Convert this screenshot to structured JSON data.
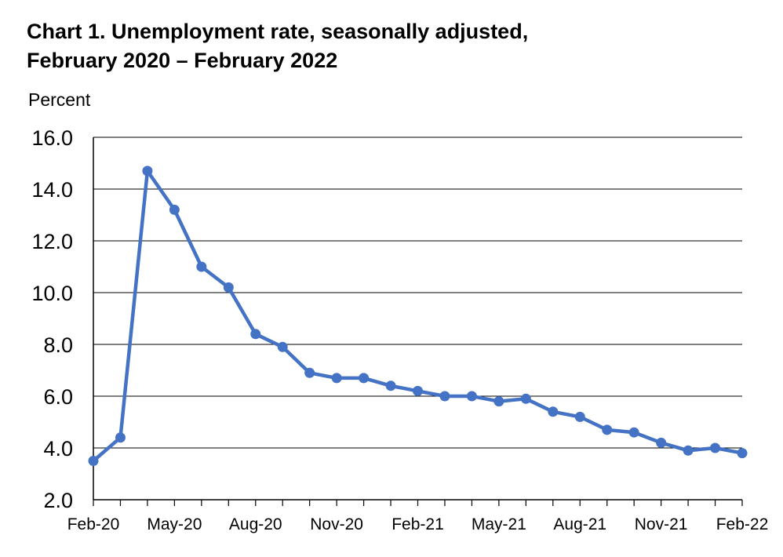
{
  "title": {
    "line1": "Chart 1. Unemployment rate, seasonally adjusted,",
    "line2": "February 2020 – February 2022"
  },
  "colors": {
    "series": "#4472C4",
    "grid": "#000000",
    "axis": "#000000"
  },
  "chart_data": {
    "type": "line",
    "title": "Chart 1. Unemployment rate, seasonally adjusted, February 2020 – February 2022",
    "xlabel": "",
    "ylabel": "Percent",
    "ylim": [
      2.0,
      16.0
    ],
    "yticks": [
      "2.0",
      "4.0",
      "6.0",
      "8.0",
      "10.0",
      "12.0",
      "14.0",
      "16.0"
    ],
    "x": [
      "Feb-20",
      "Mar-20",
      "Apr-20",
      "May-20",
      "Jun-20",
      "Jul-20",
      "Aug-20",
      "Sep-20",
      "Oct-20",
      "Nov-20",
      "Dec-20",
      "Jan-21",
      "Feb-21",
      "Mar-21",
      "Apr-21",
      "May-21",
      "Jun-21",
      "Jul-21",
      "Aug-21",
      "Sep-21",
      "Oct-21",
      "Nov-21",
      "Dec-21",
      "Jan-22",
      "Feb-22"
    ],
    "xtick_labels": [
      "Feb-20",
      "May-20",
      "Aug-20",
      "Nov-20",
      "Feb-21",
      "May-21",
      "Aug-21",
      "Nov-21",
      "Feb-22"
    ],
    "series": [
      {
        "values": [
          3.5,
          4.4,
          14.7,
          13.2,
          11.0,
          10.2,
          8.4,
          7.9,
          6.9,
          6.7,
          6.7,
          6.4,
          6.2,
          6.0,
          6.0,
          5.8,
          5.9,
          5.4,
          5.2,
          4.7,
          4.6,
          4.2,
          3.9,
          4.0,
          3.8
        ]
      }
    ],
    "grid": "horizontal",
    "legend": "none"
  }
}
